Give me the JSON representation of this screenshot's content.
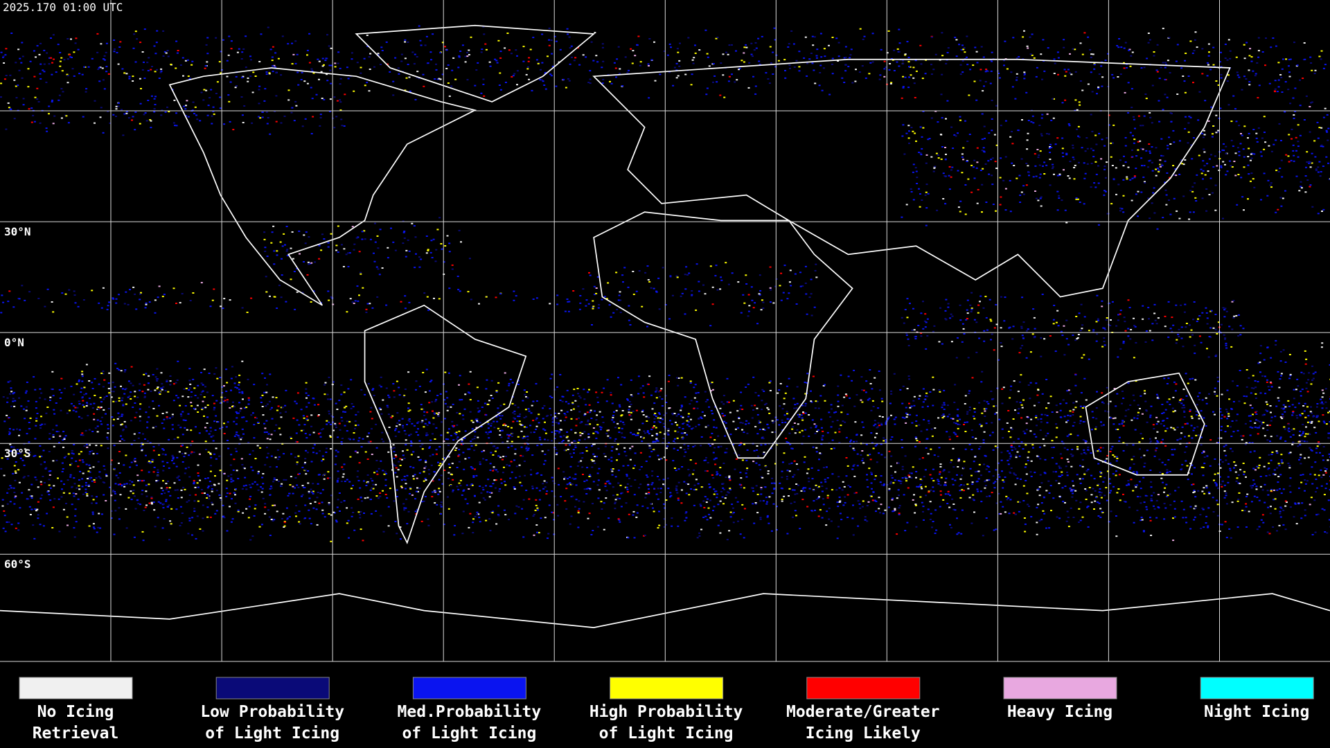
{
  "header": {
    "timestamp": "2025.170 01:00 UTC"
  },
  "map": {
    "lat_labels": [
      "30°N",
      "0°N",
      "30°S",
      "60°S"
    ]
  },
  "legend": [
    {
      "lines": [
        "No Icing",
        "Retrieval"
      ],
      "color": "#f0f0f0"
    },
    {
      "lines": [
        "Low Probability",
        "of Light Icing"
      ],
      "color": "#0a0a78"
    },
    {
      "lines": [
        "Med.Probability",
        "of Light Icing"
      ],
      "color": "#0a14f0"
    },
    {
      "lines": [
        "High Probability",
        "of Light Icing"
      ],
      "color": "#ffff00"
    },
    {
      "lines": [
        "Moderate/Greater",
        "Icing Likely"
      ],
      "color": "#ff0000"
    },
    {
      "lines": [
        "Heavy Icing"
      ],
      "color": "#e8a8e0"
    },
    {
      "lines": [
        "Night Icing"
      ],
      "color": "#00ffff"
    }
  ]
}
